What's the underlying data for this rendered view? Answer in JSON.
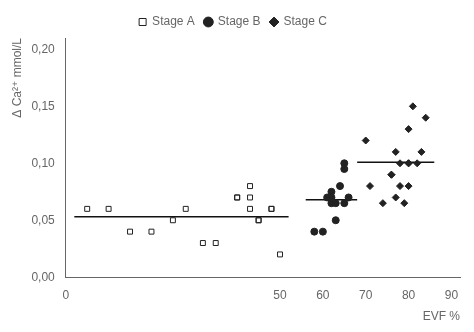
{
  "chart_data": {
    "type": "scatter",
    "xlabel": "EVF %",
    "ylabel": "Δ Ca²⁺ mmol/L",
    "xlim": [
      0,
      92
    ],
    "ylim": [
      0.0,
      0.21
    ],
    "xticks": [
      0,
      50,
      60,
      70,
      80,
      90
    ],
    "yticks": [
      {
        "value": 0.0,
        "label": "0,00"
      },
      {
        "value": 0.05,
        "label": "0,05"
      },
      {
        "value": 0.1,
        "label": "0,10"
      },
      {
        "value": 0.15,
        "label": "0,15"
      },
      {
        "value": 0.2,
        "label": "0,20"
      }
    ],
    "grid": false,
    "legend": "top",
    "series": [
      {
        "name": "Stage A",
        "type": "scatter",
        "marker": "open_square",
        "color": "#222222",
        "x": [
          5,
          10,
          15,
          20,
          25,
          28,
          32,
          35,
          40,
          40,
          43,
          43,
          43,
          45,
          45,
          48,
          48,
          50
        ],
        "values": [
          0.06,
          0.06,
          0.04,
          0.04,
          0.05,
          0.06,
          0.03,
          0.03,
          0.07,
          0.07,
          0.07,
          0.06,
          0.08,
          0.05,
          0.05,
          0.06,
          0.06,
          0.02
        ]
      },
      {
        "type": "line",
        "color": "#111111",
        "x": [
          2,
          52
        ],
        "values": [
          0.053,
          0.053
        ]
      },
      {
        "name": "Stage B",
        "type": "scatter",
        "marker": "circle",
        "color": "#222222",
        "x": [
          58,
          60,
          61,
          62,
          62,
          62,
          63,
          63,
          64,
          65,
          65,
          65,
          66
        ],
        "values": [
          0.04,
          0.04,
          0.07,
          0.075,
          0.07,
          0.065,
          0.065,
          0.05,
          0.08,
          0.095,
          0.1,
          0.065,
          0.07
        ]
      },
      {
        "type": "line",
        "color": "#111111",
        "x": [
          56,
          68
        ],
        "values": [
          0.068,
          0.068
        ]
      },
      {
        "name": "Stage C",
        "type": "scatter",
        "marker": "diamond",
        "color": "#222222",
        "x": [
          70,
          71,
          74,
          76,
          76,
          77,
          77,
          78,
          78,
          79,
          80,
          80,
          80,
          80,
          81,
          82,
          83,
          84
        ],
        "values": [
          0.12,
          0.08,
          0.065,
          0.09,
          0.09,
          0.07,
          0.11,
          0.08,
          0.1,
          0.065,
          0.1,
          0.08,
          0.13,
          0.1,
          0.15,
          0.1,
          0.11,
          0.14
        ]
      },
      {
        "type": "line",
        "color": "#111111",
        "x": [
          68,
          86
        ],
        "values": [
          0.101,
          0.101
        ]
      }
    ]
  }
}
